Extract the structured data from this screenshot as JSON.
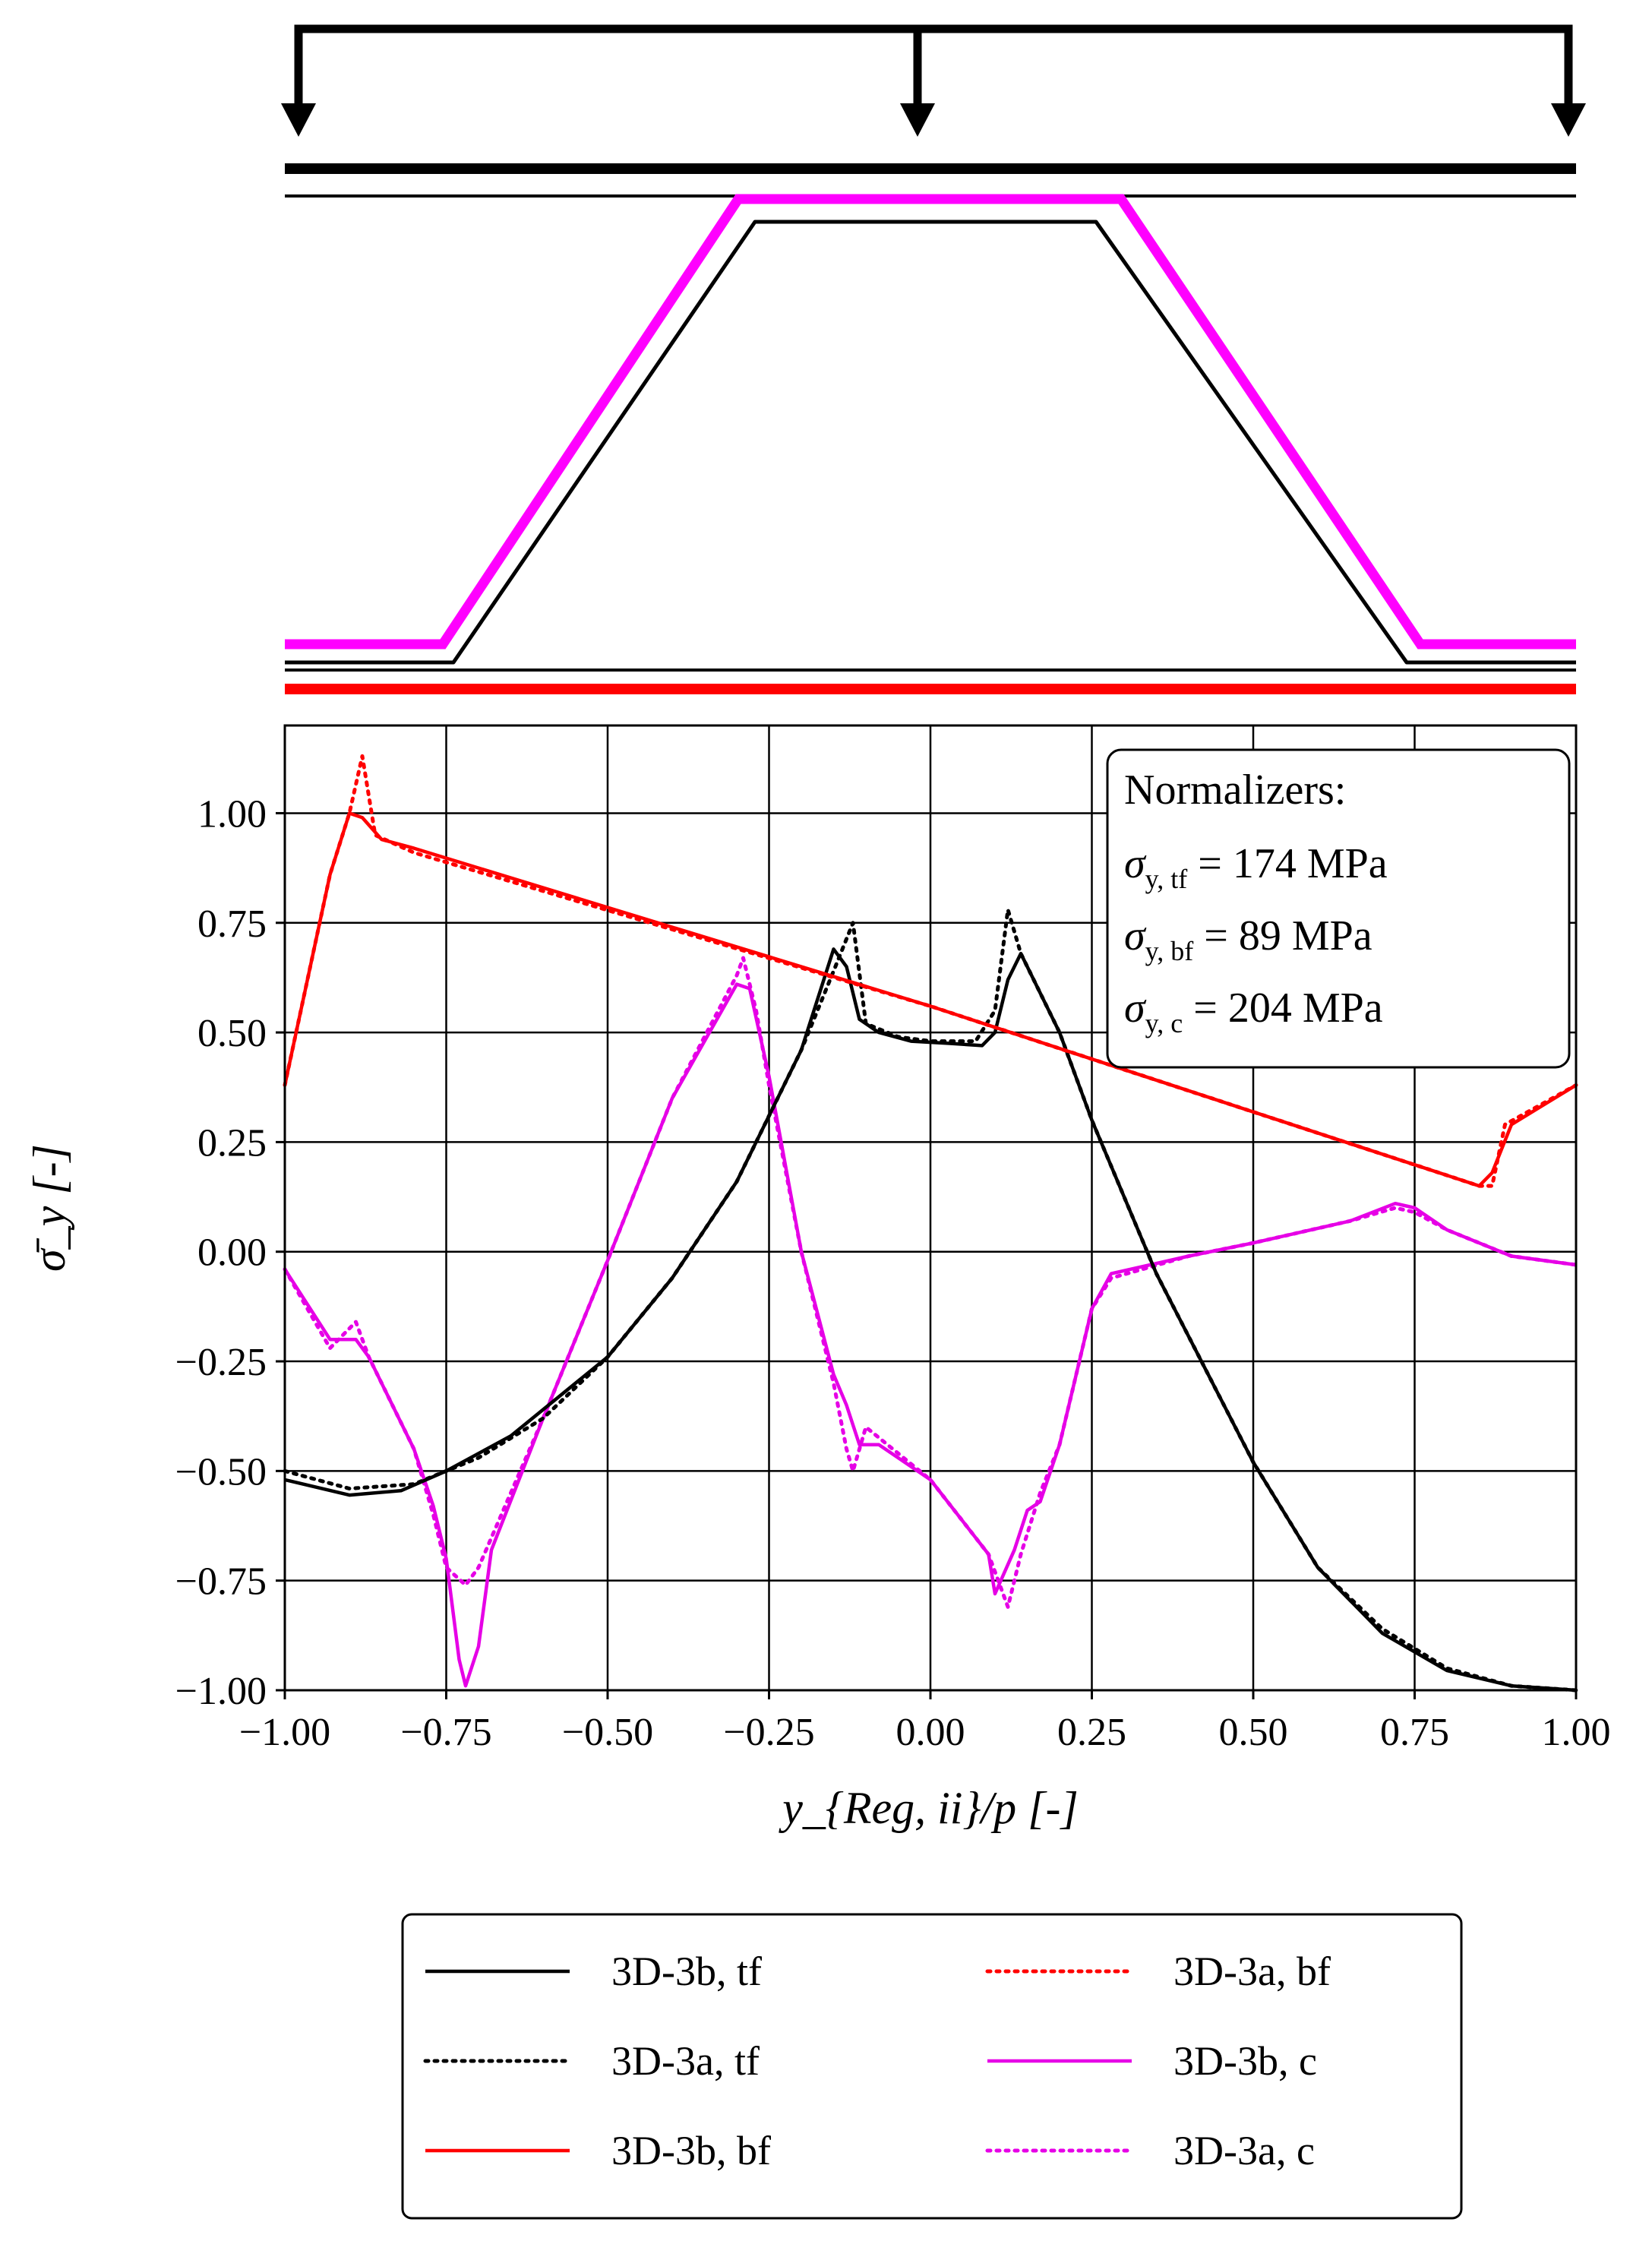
{
  "chart_data": {
    "type": "line",
    "xlabel": "y_{Reg, ii}/p [-]",
    "ylabel": "σ̄_y [-]",
    "xlim": [
      -1.0,
      1.0
    ],
    "ylim": [
      -1.0,
      1.2
    ],
    "grid": true,
    "x_ticks": [
      "−1.00",
      "−0.75",
      "−0.50",
      "−0.25",
      "0.00",
      "0.25",
      "0.50",
      "0.75",
      "1.00"
    ],
    "y_ticks": [
      "−1.00",
      "−0.75",
      "−0.50",
      "−0.25",
      "0.00",
      "0.25",
      "0.50",
      "0.75",
      "1.00"
    ],
    "annotation": {
      "title": "Normalizers:",
      "lines": [
        {
          "sym": "σ",
          "sub": "y, tf",
          "value": " = 174 MPa"
        },
        {
          "sym": "σ",
          "sub": "y, bf",
          "value": " = 89 MPa"
        },
        {
          "sym": "σ",
          "sub": "y, c",
          "value": " = 204 MPa"
        }
      ]
    },
    "legend_position": "below",
    "series": [
      {
        "name": "3D-3b, tf",
        "color": "#000000",
        "style": "solid",
        "points": [
          [
            -1.0,
            -0.52
          ],
          [
            -0.9,
            -0.555
          ],
          [
            -0.82,
            -0.545
          ],
          [
            -0.75,
            -0.5
          ],
          [
            -0.65,
            -0.42
          ],
          [
            -0.5,
            -0.24
          ],
          [
            -0.4,
            -0.06
          ],
          [
            -0.3,
            0.16
          ],
          [
            -0.2,
            0.46
          ],
          [
            -0.15,
            0.69
          ],
          [
            -0.13,
            0.65
          ],
          [
            -0.11,
            0.53
          ],
          [
            -0.08,
            0.5
          ],
          [
            -0.03,
            0.48
          ],
          [
            0.03,
            0.475
          ],
          [
            0.08,
            0.47
          ],
          [
            0.1,
            0.5
          ],
          [
            0.12,
            0.62
          ],
          [
            0.14,
            0.68
          ],
          [
            0.2,
            0.5
          ],
          [
            0.25,
            0.3
          ],
          [
            0.35,
            -0.05
          ],
          [
            0.5,
            -0.48
          ],
          [
            0.6,
            -0.72
          ],
          [
            0.7,
            -0.87
          ],
          [
            0.8,
            -0.955
          ],
          [
            0.9,
            -0.99
          ],
          [
            1.0,
            -1.0
          ]
        ]
      },
      {
        "name": "3D-3a, tf",
        "color": "#000000",
        "style": "dotted",
        "points": [
          [
            -1.0,
            -0.5
          ],
          [
            -0.9,
            -0.54
          ],
          [
            -0.8,
            -0.53
          ],
          [
            -0.7,
            -0.47
          ],
          [
            -0.6,
            -0.38
          ],
          [
            -0.5,
            -0.24
          ],
          [
            -0.4,
            -0.06
          ],
          [
            -0.3,
            0.16
          ],
          [
            -0.2,
            0.46
          ],
          [
            -0.15,
            0.64
          ],
          [
            -0.12,
            0.75
          ],
          [
            -0.1,
            0.52
          ],
          [
            -0.05,
            0.49
          ],
          [
            0.0,
            0.48
          ],
          [
            0.07,
            0.48
          ],
          [
            0.1,
            0.55
          ],
          [
            0.12,
            0.78
          ],
          [
            0.14,
            0.68
          ],
          [
            0.2,
            0.5
          ],
          [
            0.25,
            0.3
          ],
          [
            0.35,
            -0.05
          ],
          [
            0.5,
            -0.48
          ],
          [
            0.6,
            -0.72
          ],
          [
            0.7,
            -0.86
          ],
          [
            0.8,
            -0.95
          ],
          [
            0.9,
            -0.99
          ],
          [
            1.0,
            -1.0
          ]
        ]
      },
      {
        "name": "3D-3b, bf",
        "color": "#ff0000",
        "style": "solid",
        "points": [
          [
            -1.0,
            0.38
          ],
          [
            -0.93,
            0.86
          ],
          [
            -0.9,
            1.0
          ],
          [
            -0.88,
            0.99
          ],
          [
            -0.85,
            0.94
          ],
          [
            -0.8,
            0.92
          ],
          [
            0.0,
            0.56
          ],
          [
            0.85,
            0.15
          ],
          [
            0.87,
            0.18
          ],
          [
            0.9,
            0.29
          ],
          [
            1.0,
            0.38
          ]
        ]
      },
      {
        "name": "3D-3a, bf",
        "color": "#ff0000",
        "style": "dotted",
        "points": [
          [
            -1.0,
            0.38
          ],
          [
            -0.93,
            0.86
          ],
          [
            -0.9,
            1.0
          ],
          [
            -0.88,
            1.13
          ],
          [
            -0.86,
            0.95
          ],
          [
            -0.8,
            0.91
          ],
          [
            0.0,
            0.56
          ],
          [
            0.85,
            0.15
          ],
          [
            0.87,
            0.15
          ],
          [
            0.89,
            0.29
          ],
          [
            1.0,
            0.38
          ]
        ]
      },
      {
        "name": "3D-3b, c",
        "color": "#e600e6",
        "style": "solid",
        "points": [
          [
            -1.0,
            -0.04
          ],
          [
            -0.93,
            -0.2
          ],
          [
            -0.89,
            -0.2
          ],
          [
            -0.87,
            -0.24
          ],
          [
            -0.8,
            -0.45
          ],
          [
            -0.77,
            -0.58
          ],
          [
            -0.75,
            -0.7
          ],
          [
            -0.73,
            -0.93
          ],
          [
            -0.72,
            -0.99
          ],
          [
            -0.7,
            -0.9
          ],
          [
            -0.68,
            -0.68
          ],
          [
            -0.6,
            -0.38
          ],
          [
            -0.5,
            -0.02
          ],
          [
            -0.4,
            0.35
          ],
          [
            -0.3,
            0.61
          ],
          [
            -0.28,
            0.6
          ],
          [
            -0.25,
            0.4
          ],
          [
            -0.2,
            0.0
          ],
          [
            -0.15,
            -0.28
          ],
          [
            -0.13,
            -0.35
          ],
          [
            -0.11,
            -0.44
          ],
          [
            -0.08,
            -0.44
          ],
          [
            0.0,
            -0.52
          ],
          [
            0.09,
            -0.69
          ],
          [
            0.1,
            -0.78
          ],
          [
            0.13,
            -0.68
          ],
          [
            0.15,
            -0.59
          ],
          [
            0.17,
            -0.57
          ],
          [
            0.2,
            -0.44
          ],
          [
            0.25,
            -0.13
          ],
          [
            0.28,
            -0.05
          ],
          [
            0.4,
            -0.01
          ],
          [
            0.5,
            0.02
          ],
          [
            0.65,
            0.07
          ],
          [
            0.72,
            0.11
          ],
          [
            0.75,
            0.1
          ],
          [
            0.8,
            0.05
          ],
          [
            0.85,
            0.02
          ],
          [
            0.9,
            -0.01
          ],
          [
            1.0,
            -0.03
          ]
        ]
      },
      {
        "name": "3D-3a, c",
        "color": "#e600e6",
        "style": "dotted",
        "points": [
          [
            -1.0,
            -0.04
          ],
          [
            -0.93,
            -0.22
          ],
          [
            -0.89,
            -0.16
          ],
          [
            -0.87,
            -0.24
          ],
          [
            -0.8,
            -0.45
          ],
          [
            -0.77,
            -0.6
          ],
          [
            -0.75,
            -0.72
          ],
          [
            -0.72,
            -0.76
          ],
          [
            -0.7,
            -0.72
          ],
          [
            -0.6,
            -0.38
          ],
          [
            -0.5,
            -0.02
          ],
          [
            -0.4,
            0.35
          ],
          [
            -0.3,
            0.63
          ],
          [
            -0.29,
            0.67
          ],
          [
            -0.27,
            0.55
          ],
          [
            -0.25,
            0.38
          ],
          [
            -0.2,
            0.0
          ],
          [
            -0.15,
            -0.3
          ],
          [
            -0.13,
            -0.45
          ],
          [
            -0.12,
            -0.5
          ],
          [
            -0.1,
            -0.4
          ],
          [
            0.0,
            -0.52
          ],
          [
            0.09,
            -0.69
          ],
          [
            0.12,
            -0.81
          ],
          [
            0.14,
            -0.69
          ],
          [
            0.17,
            -0.55
          ],
          [
            0.2,
            -0.44
          ],
          [
            0.25,
            -0.13
          ],
          [
            0.28,
            -0.06
          ],
          [
            0.4,
            -0.01
          ],
          [
            0.5,
            0.02
          ],
          [
            0.65,
            0.07
          ],
          [
            0.72,
            0.1
          ],
          [
            0.75,
            0.09
          ],
          [
            0.8,
            0.05
          ],
          [
            0.85,
            0.02
          ],
          [
            0.9,
            -0.01
          ],
          [
            1.0,
            -0.03
          ]
        ]
      }
    ]
  }
}
